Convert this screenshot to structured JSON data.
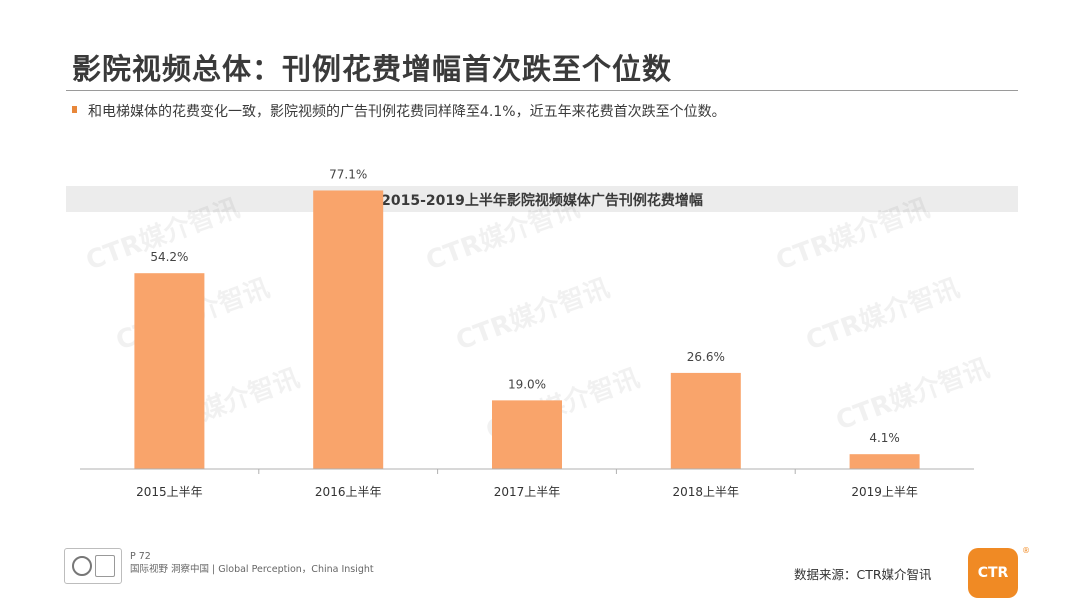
{
  "header": {
    "title": "影院视频总体：刊例花费增幅首次跌至个位数",
    "subtitle": "和电梯媒体的花费变化一致，影院视频的广告刊例花费同样降至4.1%，近五年来花费首次跌至个位数。"
  },
  "watermark": "CTR媒介智讯",
  "footer": {
    "page": "P 72",
    "tagline": "国际视野 洞察中国 | Global Perception，China Insight",
    "source": "数据来源：CTR媒介智讯",
    "logo_text": "CTR"
  },
  "colors": {
    "bar": "#f9a46b",
    "accent": "#e8873a",
    "logo": "#f08a24"
  },
  "chart_data": {
    "type": "bar",
    "title": "2015-2019上半年影院视频媒体广告刊例花费增幅",
    "categories": [
      "2015上半年",
      "2016上半年",
      "2017上半年",
      "2018上半年",
      "2019上半年"
    ],
    "values": [
      54.2,
      77.1,
      19.0,
      26.6,
      4.1
    ],
    "value_labels": [
      "54.2%",
      "77.1%",
      "19.0%",
      "26.6%",
      "4.1%"
    ],
    "unit": "%",
    "xlabel": "",
    "ylabel": "",
    "ylim": [
      0,
      80
    ],
    "grid": false,
    "legend": "none"
  }
}
